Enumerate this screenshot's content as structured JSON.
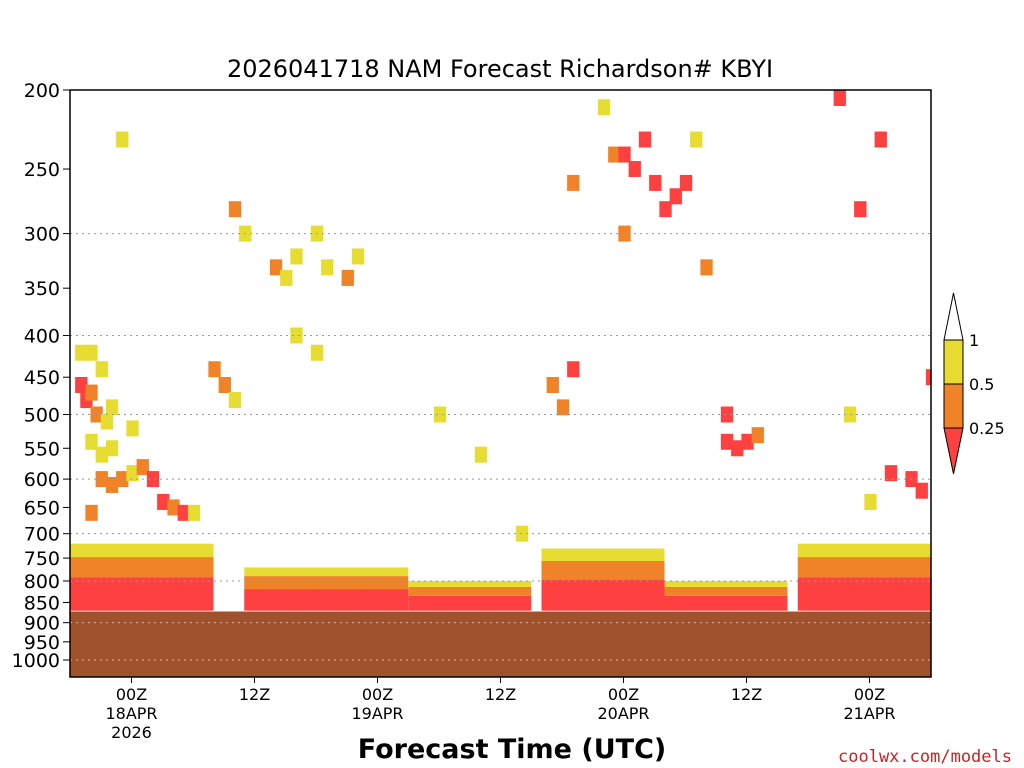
{
  "chart_data": {
    "type": "heatmap",
    "title": "2026041718 NAM Forecast Richardson# KBYI",
    "xlabel": "Forecast Time (UTC)",
    "ylabel": "",
    "y_scale": "log-pressure (hPa), inverted",
    "ylim": [
      1000,
      200
    ],
    "xlim_hours_from_init": [
      0,
      84
    ],
    "x_ticks": [
      {
        "hour": 6,
        "label": "00Z",
        "date": "18APR",
        "year": "2026"
      },
      {
        "hour": 18,
        "label": "12Z"
      },
      {
        "hour": 30,
        "label": "00Z",
        "date": "19APR"
      },
      {
        "hour": 42,
        "label": "12Z"
      },
      {
        "hour": 54,
        "label": "00Z",
        "date": "20APR"
      },
      {
        "hour": 66,
        "label": "12Z"
      },
      {
        "hour": 78,
        "label": "00Z",
        "date": "21APR"
      }
    ],
    "y_ticks": [
      200,
      250,
      300,
      350,
      400,
      450,
      500,
      550,
      600,
      650,
      700,
      750,
      800,
      850,
      900,
      950,
      1000
    ],
    "y_gridlines": [
      300,
      400,
      500,
      600,
      700,
      800,
      900,
      1000
    ],
    "grid": "dotted horizontal",
    "ground_level_hpa": 872,
    "ground_color": "#a0522d",
    "colorbar": {
      "placement": "right",
      "boundaries": [
        "0.25",
        "0.5",
        "1"
      ],
      "colors": [
        "#ff4040",
        "#f08228",
        "#e6dc32",
        "#ffffff"
      ],
      "extend": "both"
    },
    "cells": [
      {
        "t": 1,
        "p": 460,
        "lvl": 0
      },
      {
        "t": 1.5,
        "p": 480,
        "lvl": 0
      },
      {
        "t": 2,
        "p": 470,
        "lvl": 1
      },
      {
        "t": 1,
        "p": 420,
        "lvl": 2
      },
      {
        "t": 2,
        "p": 420,
        "lvl": 2
      },
      {
        "t": 3,
        "p": 440,
        "lvl": 2
      },
      {
        "t": 2.5,
        "p": 500,
        "lvl": 1
      },
      {
        "t": 3.5,
        "p": 510,
        "lvl": 2
      },
      {
        "t": 4,
        "p": 490,
        "lvl": 2
      },
      {
        "t": 2,
        "p": 540,
        "lvl": 2
      },
      {
        "t": 3,
        "p": 560,
        "lvl": 2
      },
      {
        "t": 4,
        "p": 550,
        "lvl": 2
      },
      {
        "t": 3,
        "p": 600,
        "lvl": 1
      },
      {
        "t": 4,
        "p": 610,
        "lvl": 1
      },
      {
        "t": 5,
        "p": 600,
        "lvl": 1
      },
      {
        "t": 6,
        "p": 590,
        "lvl": 2
      },
      {
        "t": 7,
        "p": 580,
        "lvl": 1
      },
      {
        "t": 8,
        "p": 600,
        "lvl": 0
      },
      {
        "t": 9,
        "p": 640,
        "lvl": 0
      },
      {
        "t": 10,
        "p": 650,
        "lvl": 1
      },
      {
        "t": 11,
        "p": 660,
        "lvl": 0
      },
      {
        "t": 12,
        "p": 660,
        "lvl": 2
      },
      {
        "t": 2,
        "p": 660,
        "lvl": 1
      },
      {
        "t": 6,
        "p": 520,
        "lvl": 2
      },
      {
        "t": 14,
        "p": 440,
        "lvl": 1
      },
      {
        "t": 15,
        "p": 460,
        "lvl": 1
      },
      {
        "t": 16,
        "p": 480,
        "lvl": 2
      },
      {
        "t": 16,
        "p": 280,
        "lvl": 1
      },
      {
        "t": 17,
        "p": 300,
        "lvl": 2
      },
      {
        "t": 20,
        "p": 330,
        "lvl": 1
      },
      {
        "t": 21,
        "p": 340,
        "lvl": 2
      },
      {
        "t": 22,
        "p": 320,
        "lvl": 2
      },
      {
        "t": 24,
        "p": 300,
        "lvl": 2
      },
      {
        "t": 25,
        "p": 330,
        "lvl": 2
      },
      {
        "t": 27,
        "p": 340,
        "lvl": 1
      },
      {
        "t": 28,
        "p": 320,
        "lvl": 2
      },
      {
        "t": 5,
        "p": 230,
        "lvl": 2
      },
      {
        "t": 22,
        "p": 400,
        "lvl": 2
      },
      {
        "t": 24,
        "p": 420,
        "lvl": 2
      },
      {
        "t": 36,
        "p": 500,
        "lvl": 2
      },
      {
        "t": 40,
        "p": 560,
        "lvl": 2
      },
      {
        "t": 44,
        "p": 700,
        "lvl": 2
      },
      {
        "t": 47,
        "p": 460,
        "lvl": 1
      },
      {
        "t": 48,
        "p": 490,
        "lvl": 1
      },
      {
        "t": 49,
        "p": 440,
        "lvl": 0
      },
      {
        "t": 52,
        "p": 210,
        "lvl": 2
      },
      {
        "t": 53,
        "p": 240,
        "lvl": 1
      },
      {
        "t": 54,
        "p": 240,
        "lvl": 0
      },
      {
        "t": 55,
        "p": 250,
        "lvl": 0
      },
      {
        "t": 56,
        "p": 230,
        "lvl": 0
      },
      {
        "t": 57,
        "p": 260,
        "lvl": 0
      },
      {
        "t": 58,
        "p": 280,
        "lvl": 0
      },
      {
        "t": 59,
        "p": 270,
        "lvl": 0
      },
      {
        "t": 60,
        "p": 260,
        "lvl": 0
      },
      {
        "t": 49,
        "p": 260,
        "lvl": 1
      },
      {
        "t": 54,
        "p": 300,
        "lvl": 1
      },
      {
        "t": 61,
        "p": 230,
        "lvl": 2
      },
      {
        "t": 62,
        "p": 330,
        "lvl": 1
      },
      {
        "t": 64,
        "p": 540,
        "lvl": 0
      },
      {
        "t": 65,
        "p": 550,
        "lvl": 0
      },
      {
        "t": 66,
        "p": 540,
        "lvl": 0
      },
      {
        "t": 67,
        "p": 530,
        "lvl": 1
      },
      {
        "t": 64,
        "p": 500,
        "lvl": 0
      },
      {
        "t": 76,
        "p": 500,
        "lvl": 2
      },
      {
        "t": 77,
        "p": 280,
        "lvl": 0
      },
      {
        "t": 79,
        "p": 230,
        "lvl": 0
      },
      {
        "t": 82,
        "p": 600,
        "lvl": 0
      },
      {
        "t": 83,
        "p": 620,
        "lvl": 0
      },
      {
        "t": 80,
        "p": 590,
        "lvl": 0
      },
      {
        "t": 78,
        "p": 640,
        "lvl": 2
      },
      {
        "t": 75,
        "p": 200,
        "lvl": 0
      },
      {
        "t": 84,
        "p": 450,
        "lvl": 0
      }
    ],
    "pbl_band": [
      {
        "t0": 0,
        "t1": 14,
        "p_top": 720,
        "p_bot": 870
      },
      {
        "t0": 17,
        "t1": 33,
        "p_top": 770,
        "p_bot": 870
      },
      {
        "t0": 33,
        "t1": 45,
        "p_top": 800,
        "p_bot": 870
      },
      {
        "t0": 46,
        "t1": 58,
        "p_top": 730,
        "p_bot": 870
      },
      {
        "t0": 58,
        "t1": 70,
        "p_top": 800,
        "p_bot": 870
      },
      {
        "t0": 71,
        "t1": 84,
        "p_top": 720,
        "p_bot": 870
      }
    ]
  },
  "watermark": "coolwx.com/models"
}
